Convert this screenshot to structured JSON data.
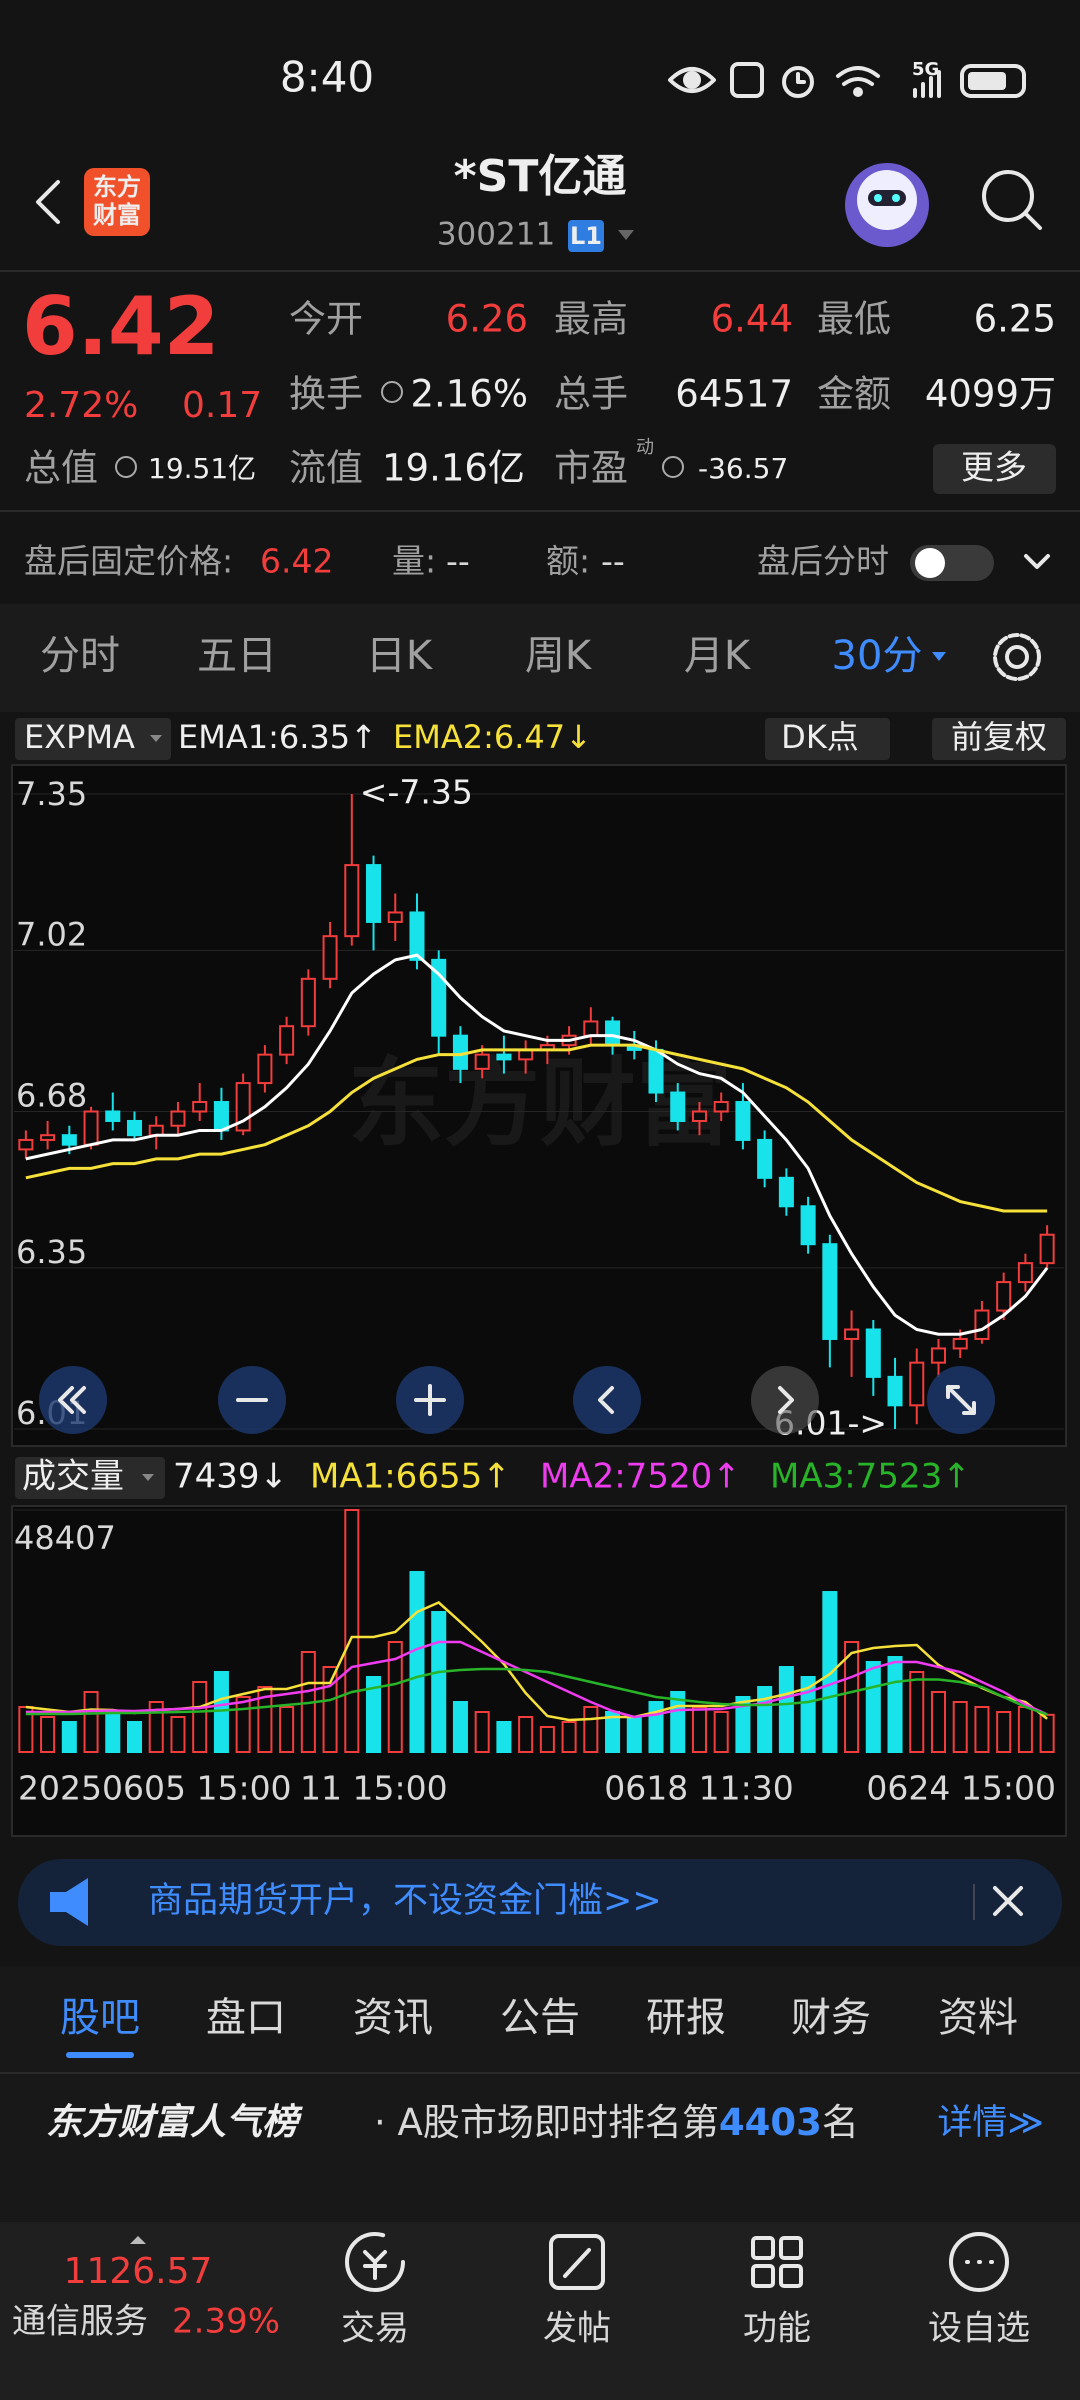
{
  "status_bar": {
    "time": "8:40",
    "network": "5G"
  },
  "header": {
    "logo": [
      "东方",
      "财富"
    ],
    "title": "*ST亿通",
    "code": "300211",
    "level": "L1"
  },
  "quote": {
    "price": "6.42",
    "change_pct": "2.72%",
    "change": "0.17",
    "stats": [
      [
        {
          "label": "今开",
          "value": "6.26"
        },
        {
          "label": "最高",
          "value": "6.44"
        },
        {
          "label": "最低",
          "value": "6.25"
        }
      ],
      [
        {
          "label": "换手",
          "value": "2.16%"
        },
        {
          "label": "总手",
          "value": "64517"
        },
        {
          "label": "金额",
          "value": "4099万"
        }
      ],
      [
        {
          "label": "总值",
          "value": "19.51亿"
        },
        {
          "label": "流值",
          "value": "19.16亿"
        },
        {
          "label": "市盈",
          "sup": "动",
          "value": "-36.57"
        }
      ]
    ],
    "more": "更多"
  },
  "after_hours": {
    "label": "盘后固定价格:",
    "price": "6.42",
    "volume_label": "量:",
    "volume": "--",
    "amount_label": "额:",
    "amount": "--",
    "intraday": "盘后分时"
  },
  "period_tabs": [
    "分时",
    "五日",
    "日K",
    "周K",
    "月K",
    "30分"
  ],
  "chart_data": [
    {
      "type": "candlestick",
      "indicator": "EXPMA",
      "buttons": [
        "DK点",
        "前复权"
      ],
      "watermark": "东方财富",
      "annotations": [
        "<-7.35",
        "6.01->"
      ],
      "up_color": "#f23d3d",
      "down_color": "#19e3ea",
      "ylim": [
        6.01,
        7.35
      ],
      "yticks": [
        7.35,
        7.02,
        6.68,
        6.35,
        6.01
      ],
      "grid": true,
      "open": [
        6.6,
        6.62,
        6.63,
        6.61,
        6.68,
        6.66,
        6.63,
        6.65,
        6.68,
        6.7,
        6.64,
        6.74,
        6.8,
        6.86,
        6.96,
        7.05,
        7.2,
        7.08,
        7.1,
        7.0,
        6.84,
        6.77,
        6.8,
        6.79,
        6.81,
        6.82,
        6.84,
        6.87,
        6.82,
        6.81,
        6.72,
        6.66,
        6.68,
        6.7,
        6.62,
        6.54,
        6.48,
        6.4,
        6.2,
        6.22,
        6.12,
        6.06,
        6.15,
        6.18,
        6.2,
        6.26,
        6.32,
        6.36
      ],
      "high": [
        6.64,
        6.66,
        6.65,
        6.69,
        6.72,
        6.68,
        6.67,
        6.7,
        6.74,
        6.73,
        6.76,
        6.82,
        6.88,
        6.98,
        7.08,
        7.35,
        7.22,
        7.14,
        7.14,
        7.02,
        6.86,
        6.82,
        6.84,
        6.83,
        6.84,
        6.86,
        6.9,
        6.88,
        6.85,
        6.83,
        6.74,
        6.7,
        6.72,
        6.74,
        6.64,
        6.56,
        6.5,
        6.42,
        6.26,
        6.24,
        6.16,
        6.18,
        6.2,
        6.22,
        6.28,
        6.34,
        6.38,
        6.44
      ],
      "low": [
        6.58,
        6.6,
        6.59,
        6.6,
        6.64,
        6.62,
        6.6,
        6.63,
        6.66,
        6.62,
        6.63,
        6.72,
        6.78,
        6.84,
        6.94,
        7.03,
        7.02,
        7.04,
        6.98,
        6.8,
        6.74,
        6.75,
        6.76,
        6.76,
        6.78,
        6.8,
        6.82,
        6.8,
        6.79,
        6.7,
        6.64,
        6.63,
        6.66,
        6.6,
        6.52,
        6.46,
        6.38,
        6.14,
        6.12,
        6.08,
        6.01,
        6.02,
        6.12,
        6.16,
        6.19,
        6.24,
        6.3,
        6.35
      ],
      "close": [
        6.62,
        6.63,
        6.61,
        6.68,
        6.66,
        6.63,
        6.65,
        6.68,
        6.7,
        6.64,
        6.74,
        6.8,
        6.86,
        6.96,
        7.05,
        7.2,
        7.08,
        7.1,
        7.0,
        6.84,
        6.77,
        6.8,
        6.79,
        6.81,
        6.82,
        6.84,
        6.87,
        6.82,
        6.81,
        6.72,
        6.66,
        6.68,
        6.7,
        6.62,
        6.54,
        6.48,
        6.4,
        6.2,
        6.22,
        6.12,
        6.06,
        6.15,
        6.18,
        6.2,
        6.26,
        6.32,
        6.36,
        6.42
      ],
      "series": [
        {
          "name": "EMA1:6.35↑",
          "color": "#ffffff",
          "values": [
            6.58,
            6.59,
            6.6,
            6.61,
            6.62,
            6.62,
            6.63,
            6.63,
            6.64,
            6.64,
            6.66,
            6.69,
            6.73,
            6.78,
            6.85,
            6.93,
            6.97,
            7.0,
            7.01,
            6.97,
            6.92,
            6.88,
            6.85,
            6.84,
            6.83,
            6.83,
            6.84,
            6.84,
            6.83,
            6.81,
            6.78,
            6.76,
            6.75,
            6.72,
            6.67,
            6.62,
            6.56,
            6.46,
            6.38,
            6.31,
            6.25,
            6.22,
            6.21,
            6.21,
            6.22,
            6.25,
            6.29,
            6.35
          ]
        },
        {
          "name": "EMA2:6.47↓",
          "color": "#f5e13a",
          "values": [
            6.54,
            6.55,
            6.56,
            6.56,
            6.57,
            6.57,
            6.58,
            6.58,
            6.59,
            6.59,
            6.6,
            6.61,
            6.63,
            6.65,
            6.68,
            6.72,
            6.75,
            6.77,
            6.79,
            6.8,
            6.8,
            6.81,
            6.81,
            6.81,
            6.81,
            6.81,
            6.82,
            6.82,
            6.82,
            6.81,
            6.8,
            6.79,
            6.78,
            6.77,
            6.75,
            6.73,
            6.7,
            6.66,
            6.62,
            6.59,
            6.56,
            6.53,
            6.51,
            6.49,
            6.48,
            6.47,
            6.47,
            6.47
          ]
        }
      ]
    },
    {
      "type": "bar",
      "indicator": "成交量",
      "last": "7439↓",
      "ylim": [
        0,
        48407
      ],
      "yticks": [
        48407
      ],
      "x_labels": [
        "20250605 15:00",
        "11 15:00",
        "0618 11:30",
        "0624 15:00"
      ],
      "values": [
        9000,
        7000,
        6000,
        12000,
        8000,
        6000,
        10000,
        7000,
        14000,
        16000,
        11000,
        13000,
        9000,
        20000,
        17000,
        48407,
        15000,
        22000,
        36000,
        28000,
        10000,
        8000,
        6000,
        7000,
        5000,
        6000,
        9000,
        8000,
        7000,
        10000,
        12000,
        9000,
        8000,
        11000,
        13000,
        17000,
        15000,
        32000,
        22000,
        18000,
        19000,
        16000,
        12000,
        10000,
        9000,
        8000,
        9000,
        7439
      ],
      "series": [
        {
          "name": "MA1:6655↑",
          "color": "#f5e13a",
          "values": [
            9000,
            8500,
            8000,
            8500,
            8400,
            7800,
            8400,
            8600,
            9000,
            10600,
            11600,
            12600,
            12600,
            13800,
            13800,
            23000,
            23000,
            24000,
            28000,
            29900,
            26000,
            22000,
            17600,
            11800,
            7200,
            6400,
            6600,
            7000,
            7000,
            8000,
            9200,
            9200,
            9200,
            10000,
            10600,
            11600,
            12800,
            15600,
            19800,
            20800,
            21200,
            21400,
            17400,
            15000,
            12800,
            11000,
            10000,
            6655
          ]
        },
        {
          "name": "MA2:7520↑",
          "color": "#f03cf0",
          "values": [
            8000,
            8000,
            8000,
            8200,
            8300,
            8200,
            8400,
            8600,
            8800,
            9400,
            10000,
            11000,
            11600,
            12200,
            13200,
            17000,
            17800,
            18600,
            20600,
            22000,
            22000,
            20000,
            18000,
            16000,
            14000,
            12000,
            10000,
            8200,
            7000,
            7500,
            8400,
            8500,
            8600,
            9200,
            9800,
            11000,
            12000,
            13500,
            15000,
            16800,
            18000,
            18000,
            17000,
            16000,
            14000,
            12000,
            9500,
            7520
          ]
        },
        {
          "name": "MA3:7523↑",
          "color": "#28b428",
          "values": [
            7600,
            7600,
            7600,
            7700,
            7800,
            7800,
            7900,
            8000,
            8100,
            8300,
            8600,
            9000,
            9400,
            9800,
            10400,
            12000,
            12800,
            13600,
            15000,
            16000,
            16400,
            16600,
            16600,
            16400,
            16000,
            15000,
            14000,
            13000,
            12000,
            11000,
            10500,
            10000,
            9600,
            9400,
            9400,
            9600,
            10000,
            11000,
            12000,
            13000,
            14000,
            14500,
            14500,
            14000,
            13000,
            11000,
            9000,
            7523
          ]
        }
      ]
    }
  ],
  "ad": {
    "text": "商品期货开户，不设资金门槛>>"
  },
  "section_tabs": [
    "股吧",
    "盘口",
    "资讯",
    "公告",
    "研报",
    "财务",
    "资料"
  ],
  "popularity": {
    "title": "东方财富人气榜",
    "text": "· A股市场即时排名第",
    "rank": "4403",
    "suffix": "名",
    "detail": "详情≫"
  },
  "bottom_nav": {
    "index_value": "1126.57",
    "index_name": "通信服务",
    "index_change": "2.39%",
    "items": [
      "交易",
      "发帖",
      "功能",
      "设自选"
    ]
  }
}
